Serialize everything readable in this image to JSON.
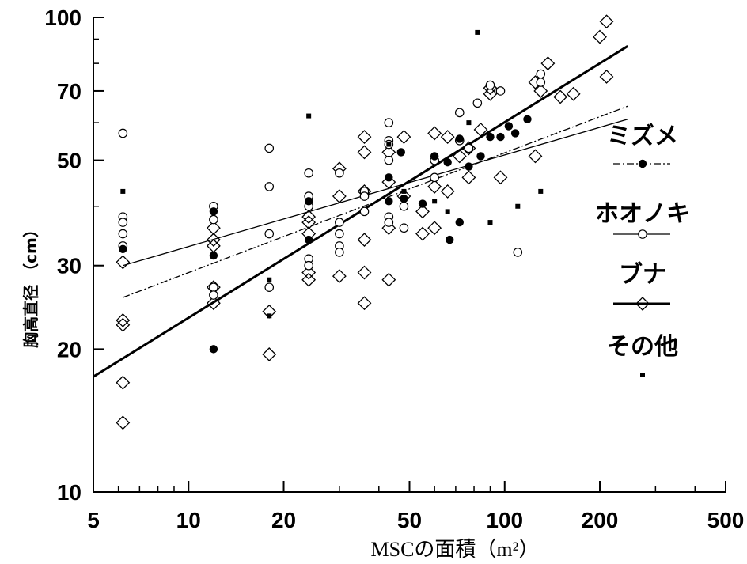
{
  "chart_data": {
    "type": "scatter",
    "title": "",
    "xlabel": "MSCの面積（m²）",
    "ylabel": "胸高直径 （cm）",
    "x_scale": "log",
    "y_scale": "log",
    "xlim": [
      5,
      500
    ],
    "ylim": [
      10,
      100
    ],
    "x_ticks": [
      5,
      10,
      20,
      50,
      100,
      200,
      500
    ],
    "y_ticks": [
      10,
      20,
      30,
      50,
      70,
      100
    ],
    "legend_position": "right",
    "series": [
      {
        "name": "ミズメ",
        "marker": "filled-circle",
        "line_style": "dash-dot",
        "fit_line": [
          [
            6.2,
            25.7
          ],
          [
            245,
            65
          ]
        ],
        "points": [
          [
            6.2,
            32.5
          ],
          [
            12,
            39
          ],
          [
            12,
            31.5
          ],
          [
            12,
            20
          ],
          [
            24,
            41
          ],
          [
            24,
            34
          ],
          [
            43,
            41
          ],
          [
            43,
            46
          ],
          [
            47,
            52
          ],
          [
            48,
            41.5
          ],
          [
            55,
            40.5
          ],
          [
            60,
            51
          ],
          [
            66,
            49.5
          ],
          [
            67,
            34
          ],
          [
            72,
            37
          ],
          [
            72,
            55.5
          ],
          [
            77,
            48.5
          ],
          [
            84,
            51
          ],
          [
            90,
            56
          ],
          [
            97,
            56
          ],
          [
            103,
            59
          ],
          [
            108,
            57
          ],
          [
            118,
            61
          ]
        ]
      },
      {
        "name": "ホオノキ",
        "marker": "open-circle",
        "line_style": "thin-solid",
        "fit_line": [
          [
            6.2,
            30
          ],
          [
            245,
            61
          ]
        ],
        "points": [
          [
            6.2,
            57
          ],
          [
            6.2,
            38
          ],
          [
            6.2,
            37
          ],
          [
            6.2,
            35
          ],
          [
            6.2,
            33
          ],
          [
            12,
            40
          ],
          [
            12,
            37.5
          ],
          [
            12,
            27
          ],
          [
            12,
            26
          ],
          [
            18,
            53
          ],
          [
            18,
            44
          ],
          [
            18,
            35
          ],
          [
            18,
            27
          ],
          [
            24,
            47
          ],
          [
            24,
            42
          ],
          [
            24,
            40
          ],
          [
            24,
            31
          ],
          [
            24,
            30
          ],
          [
            30,
            47
          ],
          [
            30,
            37
          ],
          [
            30,
            35
          ],
          [
            30,
            33
          ],
          [
            30,
            32
          ],
          [
            36,
            43
          ],
          [
            36,
            42
          ],
          [
            36,
            39
          ],
          [
            43,
            60
          ],
          [
            43,
            55
          ],
          [
            43,
            54
          ],
          [
            43,
            50
          ],
          [
            43,
            38
          ],
          [
            43,
            37
          ],
          [
            48,
            40
          ],
          [
            48,
            36
          ],
          [
            60,
            50
          ],
          [
            60,
            46
          ],
          [
            72,
            63
          ],
          [
            72,
            55
          ],
          [
            77,
            53
          ],
          [
            82,
            66
          ],
          [
            90,
            72
          ],
          [
            97,
            70
          ],
          [
            110,
            32
          ],
          [
            130,
            76
          ],
          [
            130,
            73
          ]
        ]
      },
      {
        "name": "ブナ",
        "marker": "open-diamond",
        "line_style": "thick-solid",
        "fit_line": [
          [
            5,
            17.5
          ],
          [
            245,
            87
          ]
        ],
        "points": [
          [
            6.2,
            30.5
          ],
          [
            6.2,
            23
          ],
          [
            6.2,
            22.5
          ],
          [
            6.2,
            17
          ],
          [
            6.2,
            14
          ],
          [
            12,
            36
          ],
          [
            12,
            34
          ],
          [
            12,
            33
          ],
          [
            12,
            27
          ],
          [
            12,
            25
          ],
          [
            18,
            24
          ],
          [
            18,
            19.5
          ],
          [
            24,
            38
          ],
          [
            24,
            37
          ],
          [
            24,
            35
          ],
          [
            24,
            29
          ],
          [
            24,
            28
          ],
          [
            30,
            48
          ],
          [
            30,
            42
          ],
          [
            30,
            28.5
          ],
          [
            36,
            56
          ],
          [
            36,
            52
          ],
          [
            36,
            43
          ],
          [
            36,
            34
          ],
          [
            36,
            29
          ],
          [
            36,
            25
          ],
          [
            43,
            52
          ],
          [
            43,
            45
          ],
          [
            43,
            36
          ],
          [
            43,
            28
          ],
          [
            48,
            56
          ],
          [
            48,
            42
          ],
          [
            55,
            39
          ],
          [
            55,
            35
          ],
          [
            60,
            57
          ],
          [
            60,
            44
          ],
          [
            60,
            36
          ],
          [
            66,
            56
          ],
          [
            66,
            43
          ],
          [
            72,
            51
          ],
          [
            77,
            53
          ],
          [
            77,
            46
          ],
          [
            84,
            58
          ],
          [
            90,
            71
          ],
          [
            90,
            69
          ],
          [
            97,
            46
          ],
          [
            125,
            51
          ],
          [
            125,
            73
          ],
          [
            130,
            70
          ],
          [
            137,
            80
          ],
          [
            150,
            68
          ],
          [
            165,
            69
          ],
          [
            200,
            91
          ],
          [
            210,
            75
          ],
          [
            210,
            98
          ]
        ]
      },
      {
        "name": "その他",
        "marker": "filled-square",
        "line_style": "none",
        "points": [
          [
            6.2,
            43
          ],
          [
            18,
            28
          ],
          [
            18,
            23.5
          ],
          [
            24,
            62
          ],
          [
            43,
            54
          ],
          [
            48,
            43
          ],
          [
            60,
            41
          ],
          [
            66,
            39
          ],
          [
            77,
            60
          ],
          [
            82,
            93
          ],
          [
            90,
            37
          ],
          [
            110,
            40
          ],
          [
            130,
            43
          ]
        ]
      }
    ]
  }
}
